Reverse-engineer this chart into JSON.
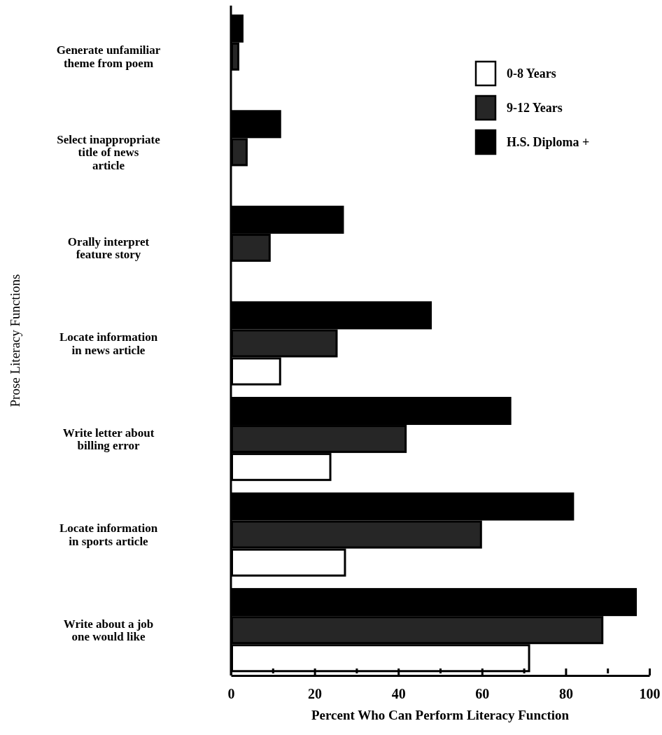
{
  "chart_data": {
    "type": "bar",
    "orientation": "horizontal",
    "xlabel": "Percent  Who Can Perform Literacy Function",
    "ylabel": "Prose Literacy Functions",
    "categories": [
      "Generate unfamiliar theme from poem",
      "Select inappropriate title of news article",
      "Orally interpret feature story",
      "Locate information in news article",
      "Write letter about billing error",
      "Locate information in sports article",
      "Write about a job one would like"
    ],
    "series": [
      {
        "name": "0-8 Years",
        "color": "#ffffff",
        "values": [
          null,
          null,
          null,
          12,
          24,
          27.5,
          71.5
        ]
      },
      {
        "name": "9-12 Years",
        "color": "#262626",
        "values": [
          2,
          4,
          9.5,
          25.5,
          42,
          60,
          89
        ]
      },
      {
        "name": "H.S. Diploma +",
        "color": "#000000",
        "values": [
          3,
          12,
          27,
          48,
          67,
          82,
          97
        ]
      }
    ],
    "xlim": [
      0,
      100
    ],
    "xticks": [
      0,
      {
        "value": 10,
        "label": null
      },
      20,
      {
        "value": 30,
        "label": null
      },
      40,
      {
        "value": 50,
        "label": null
      },
      60,
      {
        "value": 70,
        "label": null
      },
      80,
      {
        "value": 90,
        "label": null
      },
      100
    ],
    "legend": "top right",
    "grid": false
  }
}
